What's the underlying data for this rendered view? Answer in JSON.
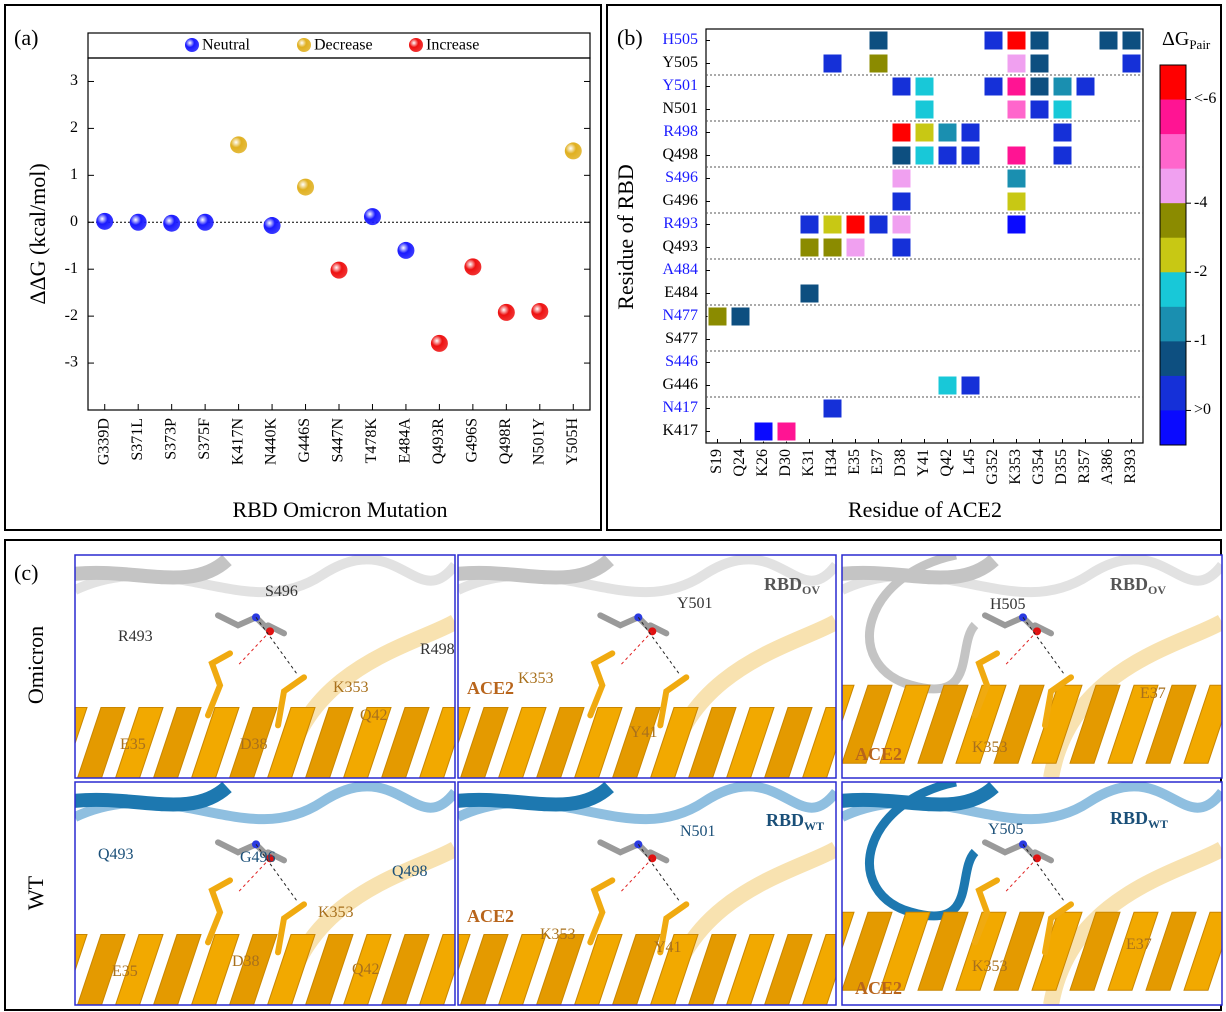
{
  "chart_data": [
    {
      "type": "scatter",
      "panel_label": "(a)",
      "x_label": "RBD Omicron Mutation",
      "y_label": "ΔΔG (kcal/mol)",
      "categories": [
        "G339D",
        "S371L",
        "S373P",
        "S375F",
        "K417N",
        "N440K",
        "G446S",
        "S447N",
        "T478K",
        "E484A",
        "Q493R",
        "G496S",
        "Q498R",
        "N501Y",
        "Y505H"
      ],
      "series": [
        {
          "name": "Neutral",
          "color": "#1a1aff",
          "values": [
            0.02,
            0,
            -0.02,
            0,
            null,
            -0.07,
            null,
            null,
            0.12,
            -0.6,
            null,
            null,
            null,
            null,
            null
          ]
        },
        {
          "name": "Decrease",
          "color": "#e0b020",
          "values": [
            null,
            null,
            null,
            null,
            1.65,
            null,
            0.75,
            null,
            null,
            null,
            null,
            null,
            null,
            null,
            1.52
          ]
        },
        {
          "name": "Increase",
          "color": "#ee1111",
          "values": [
            null,
            null,
            null,
            null,
            null,
            null,
            null,
            -1.02,
            null,
            null,
            -2.58,
            -0.95,
            -1.92,
            -1.9,
            null
          ]
        }
      ],
      "ylim": [
        -4,
        3.5
      ],
      "yticks": [
        -3,
        -2,
        -1,
        0,
        1,
        2,
        3
      ],
      "legend": "top"
    },
    {
      "type": "heatmap",
      "panel_label": "(b)",
      "x_label": "Residue of ACE2",
      "y_label": "Residue of RBD",
      "rows": [
        "H505",
        "Y505",
        "Y501",
        "N501",
        "R498",
        "Q498",
        "S496",
        "G496",
        "R493",
        "Q493",
        "A484",
        "E484",
        "N477",
        "S477",
        "S446",
        "G446",
        "N417",
        "K417"
      ],
      "row_colors": [
        "#1a1aff",
        "#000000",
        "#1a1aff",
        "#000000",
        "#1a1aff",
        "#000000",
        "#1a1aff",
        "#000000",
        "#1a1aff",
        "#000000",
        "#1a1aff",
        "#000000",
        "#1a1aff",
        "#000000",
        "#1a1aff",
        "#000000",
        "#1a1aff",
        "#000000"
      ],
      "columns": [
        "S19",
        "Q24",
        "K26",
        "D30",
        "K31",
        "H34",
        "E35",
        "E37",
        "D38",
        "Y41",
        "Q42",
        "L45",
        "G352",
        "K353",
        "G354",
        "D355",
        "R357",
        "A386",
        "R393"
      ],
      "values": [
        [
          null,
          null,
          null,
          null,
          null,
          null,
          null,
          -0.8,
          null,
          null,
          null,
          null,
          -0.3,
          -6.5,
          -0.8,
          null,
          null,
          -0.8,
          -0.8
        ],
        [
          null,
          null,
          null,
          null,
          null,
          -0.3,
          null,
          -3.5,
          null,
          null,
          null,
          null,
          null,
          -4.2,
          -0.8,
          null,
          null,
          null,
          -0.3
        ],
        [
          null,
          null,
          null,
          null,
          null,
          null,
          null,
          null,
          -0.3,
          -1.8,
          null,
          null,
          -0.3,
          -5.5,
          -0.8,
          -1.2,
          -0.3,
          null,
          null
        ],
        [
          null,
          null,
          null,
          null,
          null,
          null,
          null,
          null,
          null,
          -1.8,
          null,
          null,
          null,
          -4.7,
          -0.3,
          -1.8,
          null,
          null,
          null
        ],
        [
          null,
          null,
          null,
          null,
          null,
          null,
          null,
          null,
          -6.5,
          -2.5,
          -1.2,
          -0.3,
          null,
          null,
          null,
          -0.3,
          null,
          null,
          null
        ],
        [
          null,
          null,
          null,
          null,
          null,
          null,
          null,
          null,
          -0.8,
          -1.8,
          -0.3,
          -0.3,
          null,
          -5.5,
          null,
          -0.3,
          null,
          null,
          null
        ],
        [
          null,
          null,
          null,
          null,
          null,
          null,
          null,
          null,
          -4.2,
          null,
          null,
          null,
          null,
          -1.2,
          null,
          null,
          null,
          null,
          null
        ],
        [
          null,
          null,
          null,
          null,
          null,
          null,
          null,
          null,
          -0.3,
          null,
          null,
          null,
          null,
          -2.5,
          null,
          null,
          null,
          null,
          null
        ],
        [
          null,
          null,
          null,
          null,
          -0.3,
          -2.5,
          -6.5,
          -0.3,
          -4.2,
          null,
          null,
          null,
          null,
          0.2,
          null,
          null,
          null,
          null,
          null
        ],
        [
          null,
          null,
          null,
          null,
          -3.5,
          -3.5,
          -4.2,
          null,
          -0.3,
          null,
          null,
          null,
          null,
          null,
          null,
          null,
          null,
          null,
          null
        ],
        [
          null,
          null,
          null,
          null,
          null,
          null,
          null,
          null,
          null,
          null,
          null,
          null,
          null,
          null,
          null,
          null,
          null,
          null,
          null
        ],
        [
          null,
          null,
          null,
          null,
          -0.8,
          null,
          null,
          null,
          null,
          null,
          null,
          null,
          null,
          null,
          null,
          null,
          null,
          null,
          null
        ],
        [
          -3.5,
          -0.8,
          null,
          null,
          null,
          null,
          null,
          null,
          null,
          null,
          null,
          null,
          null,
          null,
          null,
          null,
          null,
          null,
          null
        ],
        [
          null,
          null,
          null,
          null,
          null,
          null,
          null,
          null,
          null,
          null,
          null,
          null,
          null,
          null,
          null,
          null,
          null,
          null,
          null
        ],
        [
          null,
          null,
          null,
          null,
          null,
          null,
          null,
          null,
          null,
          null,
          null,
          null,
          null,
          null,
          null,
          null,
          null,
          null,
          null
        ],
        [
          null,
          null,
          null,
          null,
          null,
          null,
          null,
          null,
          null,
          null,
          -1.8,
          -0.3,
          null,
          null,
          null,
          null,
          null,
          null,
          null
        ],
        [
          null,
          null,
          null,
          null,
          null,
          -0.3,
          null,
          null,
          null,
          null,
          null,
          null,
          null,
          null,
          null,
          null,
          null,
          null,
          null
        ],
        [
          null,
          null,
          0.2,
          -5.5,
          null,
          null,
          null,
          null,
          null,
          null,
          null,
          null,
          null,
          null,
          null,
          null,
          null,
          null,
          null
        ]
      ],
      "colorbar_title": "ΔG",
      "colorbar_title_sub": "Pair",
      "color_bounds": [
        -7,
        -6,
        -5,
        -4.5,
        -4,
        -3,
        -2,
        -1.5,
        -1,
        -0.5,
        0,
        1
      ],
      "colors": [
        "#ff0000",
        "#ff1493",
        "#ff66cc",
        "#f0a0f0",
        "#8b8b00",
        "#c8c814",
        "#18c8d8",
        "#1a8fb0",
        "#0d4f80",
        "#1530d8",
        "#0a0aff"
      ],
      "colorbar_ticks": [
        {
          "value": -6,
          "label": "<-6"
        },
        -4,
        -2,
        -1,
        {
          "value": 0,
          "label": ">0"
        }
      ]
    }
  ],
  "panel_c": {
    "panel_label": "(c)",
    "row_labels": [
      "Omicron",
      "WT"
    ],
    "panels": [
      {
        "labels": [
          {
            "text": "R493",
            "color": "#333333"
          },
          {
            "text": "S496",
            "color": "#333333"
          },
          {
            "text": "R498",
            "color": "#333333"
          },
          {
            "text": "K353",
            "color": "#a8701c"
          },
          {
            "text": "E35",
            "color": "#a8701c"
          },
          {
            "text": "D38",
            "color": "#a8701c"
          },
          {
            "text": "Q42",
            "color": "#a8701c"
          }
        ]
      },
      {
        "labels": [
          {
            "text": "Y501",
            "color": "#333333"
          },
          {
            "text": "RBD",
            "sub": "OV",
            "color": "#555555"
          },
          {
            "text": "K353",
            "color": "#a8701c"
          },
          {
            "text": "Y41",
            "color": "#a8701c"
          },
          {
            "text": "ACE2",
            "color": "#b8651c"
          }
        ]
      },
      {
        "labels": [
          {
            "text": "H505",
            "color": "#333333"
          },
          {
            "text": "RBD",
            "sub": "OV",
            "color": "#555555"
          },
          {
            "text": "K353",
            "color": "#a8701c"
          },
          {
            "text": "E37",
            "color": "#a8701c"
          },
          {
            "text": "ACE2",
            "color": "#b8651c"
          }
        ]
      },
      {
        "labels": [
          {
            "text": "Q493",
            "color": "#1a4f78"
          },
          {
            "text": "G496",
            "color": "#1a4f78"
          },
          {
            "text": "Q498",
            "color": "#1a4f78"
          },
          {
            "text": "K353",
            "color": "#a8701c"
          },
          {
            "text": "E35",
            "color": "#a8701c"
          },
          {
            "text": "D38",
            "color": "#a8701c"
          },
          {
            "text": "Q42",
            "color": "#a8701c"
          }
        ]
      },
      {
        "labels": [
          {
            "text": "N501",
            "color": "#1a4f78"
          },
          {
            "text": "RBD",
            "sub": "WT",
            "color": "#1a4f78"
          },
          {
            "text": "K353",
            "color": "#a8701c"
          },
          {
            "text": "Y41",
            "color": "#a8701c"
          },
          {
            "text": "ACE2",
            "color": "#b8651c"
          }
        ]
      },
      {
        "labels": [
          {
            "text": "Y505",
            "color": "#1a4f78"
          },
          {
            "text": "RBD",
            "sub": "WT",
            "color": "#1a4f78"
          },
          {
            "text": "K353",
            "color": "#a8701c"
          },
          {
            "text": "E37",
            "color": "#a8701c"
          },
          {
            "text": "ACE2",
            "color": "#b8651c"
          }
        ]
      }
    ]
  }
}
